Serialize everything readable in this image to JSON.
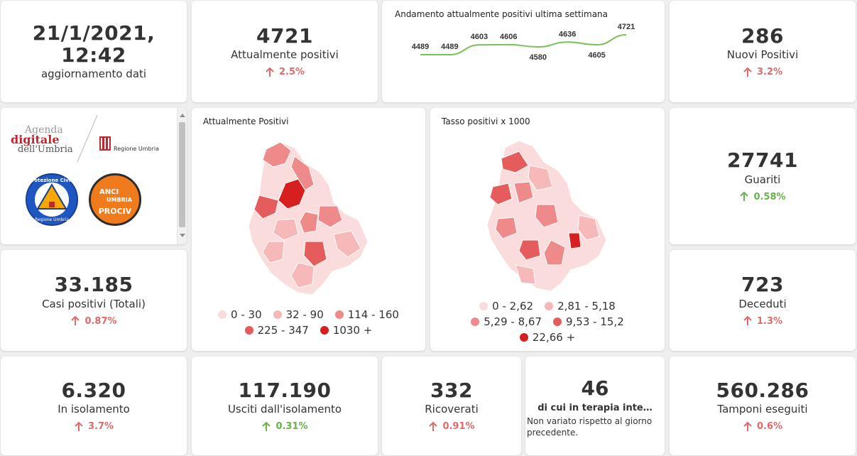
{
  "update": {
    "datetime": "21/1/2021, 12:42",
    "label": "aggiornamento dati"
  },
  "attualmente_positivi": {
    "value": "4721",
    "label": "Attualmente positivi",
    "delta": "2.5%",
    "trend": "up",
    "color": "#e06a6a"
  },
  "andamento": {
    "title": "Andamento attualmente positivi ultima settimana",
    "points": [
      4489,
      4489,
      4603,
      4606,
      4580,
      4636,
      4605,
      4721
    ],
    "labels": [
      "4489",
      "4489",
      "4603",
      "4606",
      "4580",
      "4636",
      "4605",
      "4721"
    ],
    "line_color": "#7cc05a"
  },
  "nuovi_positivi": {
    "value": "286",
    "label": "Nuovi Positivi",
    "delta": "3.2%",
    "trend": "up"
  },
  "logos": {
    "agenda_line1": "Agenda",
    "agenda_line2": "digitale",
    "agenda_line3": "dell'Umbria",
    "regione": "Regione Umbria",
    "protezione_civile": "Protezione Civile",
    "protezione_sub": "Regione Umbria",
    "anci_line1": "ANCI",
    "anci_line2": "UMBRIA",
    "anci_line3": "PROCIV"
  },
  "map_positivi": {
    "title": "Attualmente Positivi",
    "legend": [
      {
        "label": "0 - 30",
        "color": "#fadcdc"
      },
      {
        "label": "32 - 90",
        "color": "#f6b8b8"
      },
      {
        "label": "114 - 160",
        "color": "#ee8a8a"
      },
      {
        "label": "225 - 347",
        "color": "#e45c5c"
      },
      {
        "label": "1030 +",
        "color": "#d81f1f"
      }
    ]
  },
  "map_tasso": {
    "title": "Tasso positivi x 1000",
    "legend": [
      {
        "label": "0 - 2,62",
        "color": "#fadcdc"
      },
      {
        "label": "2,81 - 5,18",
        "color": "#f6b8b8"
      },
      {
        "label": "5,29 - 8,67",
        "color": "#ee8a8a"
      },
      {
        "label": "9,53 - 15,2",
        "color": "#e45c5c"
      },
      {
        "label": "22,66 +",
        "color": "#d81f1f"
      }
    ]
  },
  "guariti": {
    "value": "27741",
    "label": "Guariti",
    "delta": "0.58%",
    "trend": "up"
  },
  "casi_totali": {
    "value": "33.185",
    "label": "Casi positivi (Totali)",
    "delta": "0.87%",
    "trend": "up"
  },
  "deceduti": {
    "value": "723",
    "label": "Deceduti",
    "delta": "1.3%",
    "trend": "up"
  },
  "isolamento": {
    "value": "6.320",
    "label": "In isolamento",
    "delta": "3.7%",
    "trend": "up"
  },
  "usciti": {
    "value": "117.190",
    "label": "Usciti dall'isolamento",
    "delta": "0.31%",
    "trend": "up"
  },
  "ricoverati": {
    "value": "332",
    "label": "Ricoverati",
    "delta": "0.91%",
    "trend": "up"
  },
  "terapia": {
    "value": "46",
    "label": "di cui in terapia inte…",
    "note": "Non variato rispetto al giorno precedente."
  },
  "tamponi": {
    "value": "560.286",
    "label": "Tamponi eseguiti",
    "delta": "0.6%",
    "trend": "up"
  },
  "colors": {
    "red": "#e06a6a",
    "green": "#69b34c"
  }
}
